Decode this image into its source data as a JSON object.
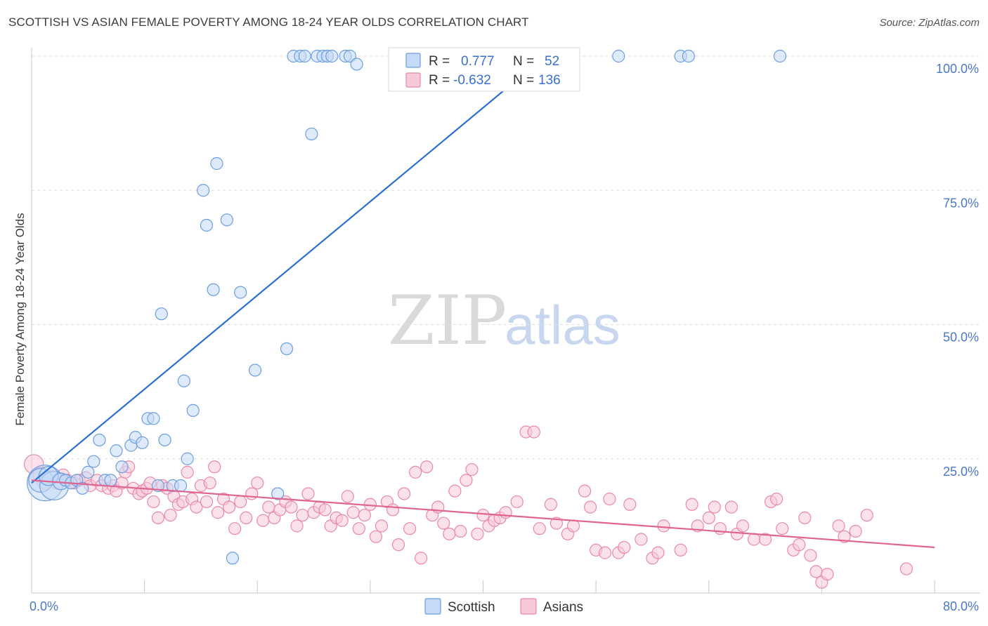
{
  "header": {
    "title": "SCOTTISH VS ASIAN FEMALE POVERTY AMONG 18-24 YEAR OLDS CORRELATION CHART",
    "source": "Source: ZipAtlas.com"
  },
  "watermark": {
    "zip": "ZIP",
    "atlas": "atlas"
  },
  "colors": {
    "scottish": "#6b9de0",
    "scottish_fill": "#c5daf6",
    "scottish_line": "#2a6fd4",
    "asians": "#e889a8",
    "asians_fill": "#f7c9d8",
    "asians_line": "#e0648f",
    "axis_tick_text": "#4a78c8",
    "grid": "#dedede"
  },
  "legend_top": {
    "rows": [
      {
        "r_label": "R =",
        "r_value": "0.777",
        "n_label": "N =",
        "n_value": "52",
        "series": "scottish"
      },
      {
        "r_label": "R =",
        "r_value": "-0.632",
        "n_label": "N =",
        "n_value": "136",
        "series": "asians"
      }
    ]
  },
  "legend_bottom": {
    "items": [
      "Scottish",
      "Asians"
    ]
  },
  "chart_data": {
    "type": "scatter",
    "title": "SCOTTISH VS ASIAN FEMALE POVERTY AMONG 18-24 YEAR OLDS CORRELATION CHART",
    "xlabel": "",
    "ylabel": "Female Poverty Among 18-24 Year Olds",
    "xlim": [
      0,
      80
    ],
    "ylim": [
      0,
      100
    ],
    "x_tick_labels": [
      {
        "value": 0,
        "label": "0.0%"
      },
      {
        "value": 80,
        "label": "80.0%"
      }
    ],
    "y_tick_labels": [
      {
        "value": 25,
        "label": "25.0%"
      },
      {
        "value": 50,
        "label": "50.0%"
      },
      {
        "value": 75,
        "label": "75.0%"
      },
      {
        "value": 100,
        "label": "100.0%"
      }
    ],
    "grid": true,
    "legend_position": "top-center",
    "series": [
      {
        "name": "Scottish",
        "r": 0.777,
        "n": 52,
        "trend": {
          "x": [
            0,
            45.5
          ],
          "y": [
            20.5,
            100
          ]
        },
        "points": [
          [
            1.2,
            20.5,
            3
          ],
          [
            0.8,
            21.0,
            2
          ],
          [
            2.0,
            20.0,
            2.4
          ],
          [
            1.5,
            21.8,
            1.6
          ],
          [
            2.6,
            20.8,
            1.4
          ],
          [
            3.0,
            21.0,
            1
          ],
          [
            3.5,
            20.5,
            1
          ],
          [
            4.0,
            21.0,
            1
          ],
          [
            4.5,
            19.5,
            1
          ],
          [
            5.0,
            22.5,
            1
          ],
          [
            5.5,
            24.5,
            1
          ],
          [
            6.0,
            28.5,
            1
          ],
          [
            6.5,
            21.0,
            1
          ],
          [
            7.0,
            21.0,
            1
          ],
          [
            7.5,
            26.5,
            1
          ],
          [
            8.0,
            23.5,
            1
          ],
          [
            8.8,
            27.5,
            1
          ],
          [
            9.2,
            29.0,
            1
          ],
          [
            9.8,
            28.0,
            1
          ],
          [
            10.3,
            32.5,
            1
          ],
          [
            10.8,
            32.5,
            1
          ],
          [
            11.2,
            20.0,
            1
          ],
          [
            11.5,
            52.0,
            1
          ],
          [
            11.8,
            28.5,
            1
          ],
          [
            12.5,
            20.0,
            1
          ],
          [
            13.2,
            20.0,
            1
          ],
          [
            13.5,
            39.5,
            1
          ],
          [
            13.8,
            25.0,
            1
          ],
          [
            14.3,
            34.0,
            1
          ],
          [
            15.2,
            75.0,
            1
          ],
          [
            15.5,
            68.5,
            1
          ],
          [
            16.1,
            56.5,
            1
          ],
          [
            16.4,
            80.0,
            1
          ],
          [
            17.3,
            69.5,
            1
          ],
          [
            17.8,
            6.5,
            1
          ],
          [
            18.5,
            56.0,
            1
          ],
          [
            19.8,
            41.5,
            1
          ],
          [
            21.8,
            18.5,
            1
          ],
          [
            22.6,
            45.5,
            1
          ],
          [
            23.2,
            100,
            1
          ],
          [
            23.8,
            100,
            1
          ],
          [
            24.2,
            100,
            1
          ],
          [
            24.8,
            85.5,
            1
          ],
          [
            25.3,
            100,
            1
          ],
          [
            25.8,
            100,
            1
          ],
          [
            26.2,
            100,
            1
          ],
          [
            26.6,
            100,
            1
          ],
          [
            27.8,
            100,
            1
          ],
          [
            28.2,
            100,
            1
          ],
          [
            28.8,
            98.5,
            1
          ],
          [
            52.0,
            100,
            1
          ],
          [
            57.5,
            100,
            1
          ],
          [
            58.2,
            100,
            1
          ],
          [
            66.3,
            100,
            1
          ]
        ]
      },
      {
        "name": "Asians",
        "r": -0.632,
        "n": 136,
        "trend": {
          "x": [
            0,
            80
          ],
          "y": [
            21.0,
            8.5
          ]
        },
        "points": [
          [
            0.2,
            24.0,
            1.6
          ],
          [
            0.8,
            22.0,
            1.3
          ],
          [
            1.2,
            21.0,
            1.5
          ],
          [
            1.8,
            21.5,
            1.2
          ],
          [
            2.2,
            20.5,
            1
          ],
          [
            2.8,
            22.0,
            1
          ],
          [
            3.2,
            21.0,
            1
          ],
          [
            3.8,
            20.5,
            1
          ],
          [
            4.2,
            21.0,
            1
          ],
          [
            4.8,
            21.5,
            1
          ],
          [
            5.2,
            20.0,
            1
          ],
          [
            5.8,
            21.0,
            1
          ],
          [
            6.2,
            20.0,
            1
          ],
          [
            6.8,
            19.5,
            1
          ],
          [
            7.2,
            20.0,
            1
          ],
          [
            7.5,
            19.0,
            1
          ],
          [
            8.0,
            20.5,
            1
          ],
          [
            8.3,
            22.5,
            1
          ],
          [
            8.6,
            23.5,
            1
          ],
          [
            9.0,
            19.5,
            1
          ],
          [
            9.5,
            18.5,
            1
          ],
          [
            9.8,
            19.0,
            1
          ],
          [
            10.2,
            19.5,
            1
          ],
          [
            10.5,
            20.5,
            1
          ],
          [
            10.8,
            17.0,
            1
          ],
          [
            11.2,
            14.0,
            1
          ],
          [
            11.6,
            20.0,
            1
          ],
          [
            12.0,
            19.5,
            1
          ],
          [
            12.3,
            14.5,
            1
          ],
          [
            12.6,
            18.0,
            1
          ],
          [
            13.0,
            16.5,
            1
          ],
          [
            13.4,
            17.0,
            1
          ],
          [
            13.8,
            22.5,
            1
          ],
          [
            14.2,
            17.5,
            1
          ],
          [
            14.6,
            16.0,
            1
          ],
          [
            15.0,
            20.0,
            1
          ],
          [
            15.5,
            17.0,
            1
          ],
          [
            15.8,
            20.5,
            1
          ],
          [
            16.2,
            23.5,
            1
          ],
          [
            16.5,
            15.0,
            1
          ],
          [
            17.0,
            17.5,
            1
          ],
          [
            17.5,
            16.0,
            1
          ],
          [
            18.0,
            12.0,
            1
          ],
          [
            18.5,
            17.0,
            1
          ],
          [
            19.0,
            14.0,
            1
          ],
          [
            19.5,
            18.5,
            1
          ],
          [
            20.0,
            20.5,
            1
          ],
          [
            20.5,
            13.5,
            1
          ],
          [
            21.0,
            16.0,
            1
          ],
          [
            21.5,
            14.0,
            1
          ],
          [
            22.0,
            15.5,
            1
          ],
          [
            22.5,
            17.0,
            1
          ],
          [
            23.0,
            16.0,
            1
          ],
          [
            23.5,
            12.5,
            1
          ],
          [
            24.0,
            14.5,
            1
          ],
          [
            24.5,
            18.5,
            1
          ],
          [
            25.0,
            15.0,
            1
          ],
          [
            25.5,
            16.0,
            1
          ],
          [
            26.0,
            15.5,
            1
          ],
          [
            26.5,
            12.5,
            1
          ],
          [
            27.0,
            14.0,
            1
          ],
          [
            27.5,
            13.5,
            1
          ],
          [
            28.0,
            18.0,
            1
          ],
          [
            28.5,
            15.0,
            1
          ],
          [
            29.0,
            12.0,
            1
          ],
          [
            29.5,
            14.5,
            1
          ],
          [
            30.0,
            16.5,
            1
          ],
          [
            30.5,
            10.5,
            1
          ],
          [
            31.0,
            12.5,
            1
          ],
          [
            31.5,
            17.0,
            1
          ],
          [
            32.0,
            15.5,
            1
          ],
          [
            32.5,
            9.0,
            1
          ],
          [
            33.0,
            18.5,
            1
          ],
          [
            33.5,
            12.0,
            1
          ],
          [
            34.0,
            22.5,
            1
          ],
          [
            34.5,
            6.5,
            1
          ],
          [
            35.0,
            23.5,
            1
          ],
          [
            35.5,
            14.5,
            1
          ],
          [
            36.0,
            16.0,
            1
          ],
          [
            36.5,
            13.0,
            1
          ],
          [
            37.0,
            11.0,
            1
          ],
          [
            37.5,
            19.0,
            1
          ],
          [
            38.0,
            11.5,
            1
          ],
          [
            38.5,
            21.0,
            1
          ],
          [
            39.0,
            23.0,
            1
          ],
          [
            39.5,
            11.0,
            1
          ],
          [
            40.0,
            14.5,
            1
          ],
          [
            40.5,
            12.5,
            1
          ],
          [
            41.0,
            13.5,
            1
          ],
          [
            41.5,
            14.0,
            1
          ],
          [
            42.0,
            15.0,
            1
          ],
          [
            43.0,
            17.0,
            1
          ],
          [
            43.8,
            30.0,
            1
          ],
          [
            44.5,
            30.0,
            1
          ],
          [
            45.0,
            12.0,
            1
          ],
          [
            46.0,
            16.5,
            1
          ],
          [
            46.5,
            13.0,
            1
          ],
          [
            47.5,
            11.0,
            1
          ],
          [
            48.0,
            12.5,
            1
          ],
          [
            49.0,
            19.0,
            1
          ],
          [
            49.5,
            16.0,
            1
          ],
          [
            50.0,
            8.0,
            1
          ],
          [
            50.8,
            7.5,
            1
          ],
          [
            51.2,
            17.5,
            1
          ],
          [
            52.0,
            7.5,
            1
          ],
          [
            52.5,
            8.5,
            1
          ],
          [
            53.0,
            16.5,
            1
          ],
          [
            54.0,
            10.0,
            1
          ],
          [
            55.0,
            6.5,
            1
          ],
          [
            55.5,
            7.5,
            1
          ],
          [
            56.0,
            12.5,
            1
          ],
          [
            57.5,
            8.0,
            1
          ],
          [
            58.5,
            16.5,
            1
          ],
          [
            59.0,
            12.5,
            1
          ],
          [
            60.0,
            14.0,
            1
          ],
          [
            60.5,
            16.0,
            1
          ],
          [
            61.0,
            12.0,
            1
          ],
          [
            62.0,
            16.0,
            1
          ],
          [
            62.5,
            11.0,
            1
          ],
          [
            63.0,
            12.5,
            1
          ],
          [
            64.0,
            10.0,
            1
          ],
          [
            65.0,
            10.0,
            1
          ],
          [
            65.5,
            17.0,
            1
          ],
          [
            66.0,
            17.5,
            1
          ],
          [
            66.5,
            12.0,
            1
          ],
          [
            67.5,
            8.0,
            1
          ],
          [
            68.0,
            9.0,
            1
          ],
          [
            68.5,
            14.0,
            1
          ],
          [
            69.0,
            7.0,
            1
          ],
          [
            69.5,
            4.0,
            1
          ],
          [
            70.0,
            2.0,
            1
          ],
          [
            70.5,
            3.5,
            1
          ],
          [
            71.5,
            12.5,
            1
          ],
          [
            72.0,
            10.5,
            1
          ],
          [
            73.0,
            11.5,
            1
          ],
          [
            74.0,
            14.5,
            1
          ],
          [
            77.5,
            4.5,
            1
          ]
        ]
      }
    ]
  }
}
